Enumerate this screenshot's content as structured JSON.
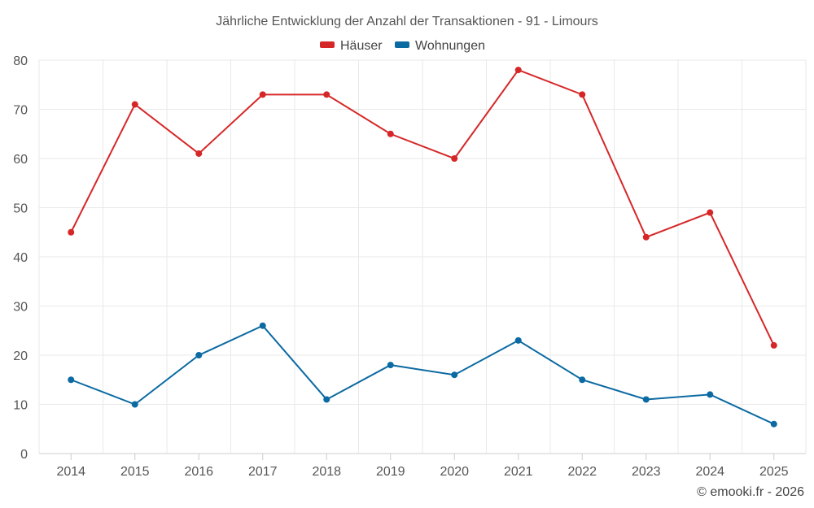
{
  "chart_data": {
    "type": "line",
    "title": "Jährliche Entwicklung der Anzahl der Transaktionen - 91 - Limours",
    "categories": [
      "2014",
      "2015",
      "2016",
      "2017",
      "2018",
      "2019",
      "2020",
      "2021",
      "2022",
      "2023",
      "2024",
      "2025"
    ],
    "series": [
      {
        "name": "Häuser",
        "color": "#d62728",
        "values": [
          45,
          71,
          61,
          73,
          73,
          65,
          60,
          78,
          73,
          44,
          49,
          22
        ]
      },
      {
        "name": "Wohnungen",
        "color": "#0b6aa2",
        "values": [
          15,
          10,
          20,
          26,
          11,
          18,
          16,
          23,
          15,
          11,
          12,
          6
        ]
      }
    ],
    "ylim": [
      0,
      80
    ],
    "yticks": [
      0,
      10,
      20,
      30,
      40,
      50,
      60,
      70,
      80
    ],
    "grid": true,
    "legend": "top-center"
  },
  "credit": "© emooki.fr - 2026"
}
